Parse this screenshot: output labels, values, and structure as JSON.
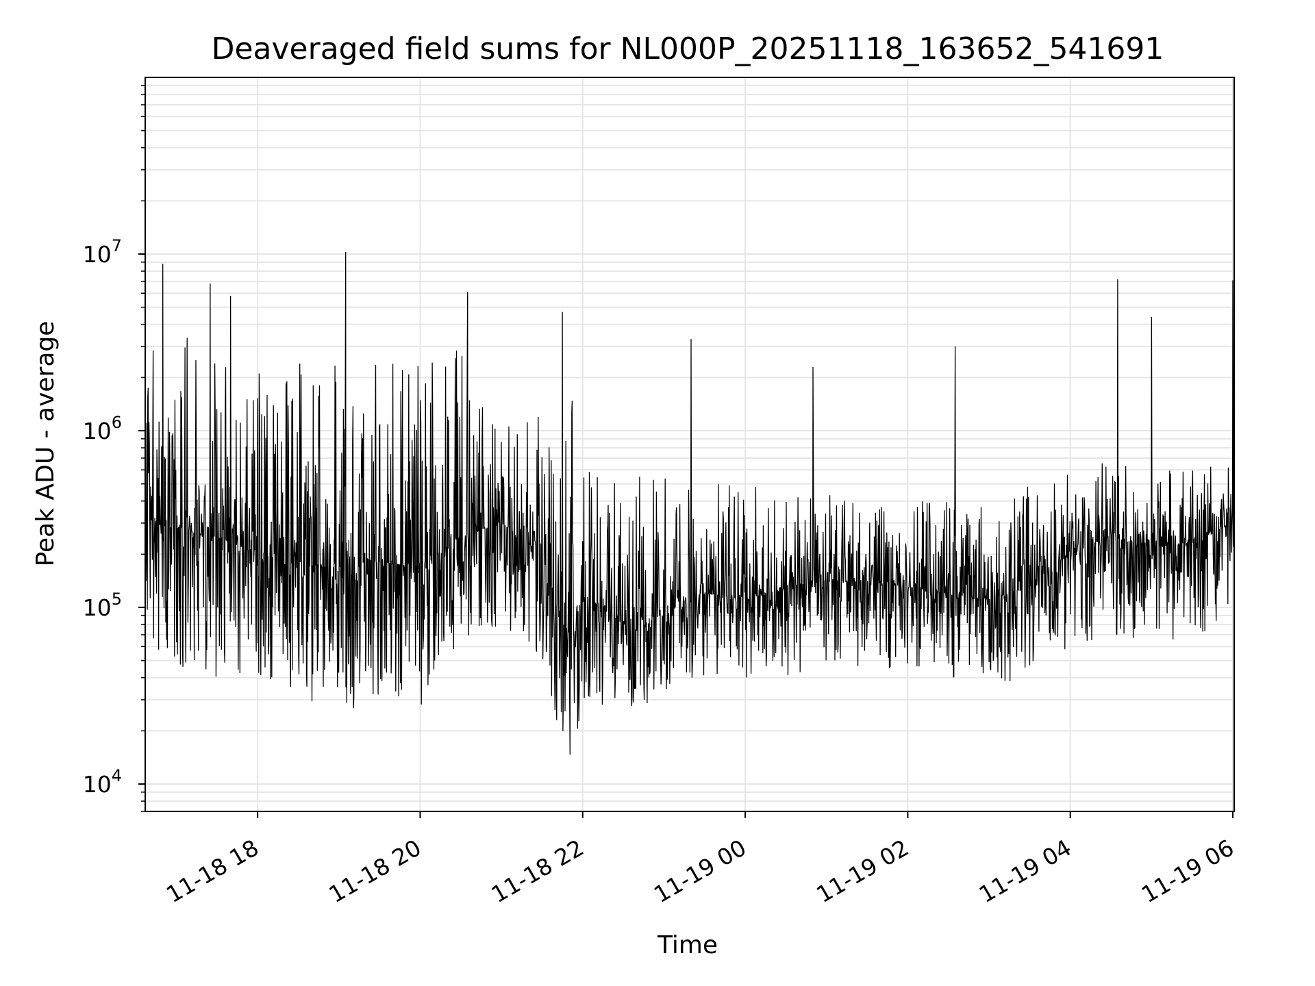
{
  "chart_data": {
    "type": "line",
    "title": "Deaveraged field sums for NL000P_20251118_163652_541691",
    "xlabel": "Time",
    "ylabel": "Peak ADU - average",
    "yscale": "log",
    "grid": true,
    "ylim": [
      7000,
      100000000
    ],
    "xlim": [
      "11-18 16:37",
      "11-19 06:01"
    ],
    "x_ticks": [
      "11-18 18",
      "11-18 20",
      "11-18 22",
      "11-19 00",
      "11-19 02",
      "11-19 04",
      "11-19 06"
    ],
    "y_ticks": [
      {
        "base": "10",
        "exp": "4",
        "value": 10000
      },
      {
        "base": "10",
        "exp": "5",
        "value": 100000
      },
      {
        "base": "10",
        "exp": "6",
        "value": 1000000
      },
      {
        "base": "10",
        "exp": "7",
        "value": 10000000
      }
    ],
    "line_color": "#000000",
    "series": [
      {
        "x": [
          "11-18 16:37",
          "11-18 17:00",
          "11-18 17:30",
          "11-18 18:00",
          "11-18 18:30",
          "11-18 19:00",
          "11-18 19:30",
          "11-18 20:00",
          "11-18 20:30",
          "11-18 21:00",
          "11-18 21:30",
          "11-18 21:50",
          "11-18 22:00",
          "11-18 22:30",
          "11-18 23:00",
          "11-18 23:30",
          "11-19 00:00",
          "11-19 00:30",
          "11-19 01:00",
          "11-19 01:30",
          "11-19 02:00",
          "11-19 02:30",
          "11-19 03:00",
          "11-19 03:30",
          "11-19 04:00",
          "11-19 04:30",
          "11-19 05:00",
          "11-19 05:30",
          "11-19 06:00"
        ],
        "median": [
          300000,
          280000,
          250000,
          200000,
          180000,
          160000,
          180000,
          170000,
          250000,
          300000,
          200000,
          60000,
          120000,
          80000,
          90000,
          120000,
          110000,
          130000,
          140000,
          140000,
          130000,
          120000,
          110000,
          130000,
          200000,
          250000,
          220000,
          230000,
          300000
        ],
        "low": [
          60000,
          45000,
          40000,
          35000,
          30000,
          25000,
          30000,
          25000,
          60000,
          80000,
          50000,
          11000,
          30000,
          25000,
          30000,
          40000,
          35000,
          40000,
          45000,
          45000,
          40000,
          38000,
          35000,
          40000,
          60000,
          70000,
          60000,
          70000,
          80000
        ],
        "high": [
          3000000,
          3500000,
          3000000,
          2500000,
          2500000,
          2500000,
          3000000,
          2500000,
          3000000,
          1000000,
          1500000,
          2500000,
          600000,
          600000,
          600000,
          500000,
          500000,
          450000,
          450000,
          400000,
          400000,
          400000,
          400000,
          500000,
          600000,
          700000,
          600000,
          600000,
          800000
        ]
      }
    ],
    "spikes": [
      {
        "x": "11-18 16:50",
        "y": 8800000
      },
      {
        "x": "11-18 17:25",
        "y": 6800000
      },
      {
        "x": "11-18 17:40",
        "y": 5800000
      },
      {
        "x": "11-18 19:05",
        "y": 10300000
      },
      {
        "x": "11-18 20:35",
        "y": 6100000
      },
      {
        "x": "11-18 21:45",
        "y": 4700000
      },
      {
        "x": "11-18 23:20",
        "y": 3300000
      },
      {
        "x": "11-19 00:50",
        "y": 2300000
      },
      {
        "x": "11-19 02:35",
        "y": 3000000
      },
      {
        "x": "11-19 04:35",
        "y": 7200000
      },
      {
        "x": "11-19 05:00",
        "y": 4400000
      },
      {
        "x": "11-19 06:00",
        "y": 7100000
      }
    ]
  }
}
